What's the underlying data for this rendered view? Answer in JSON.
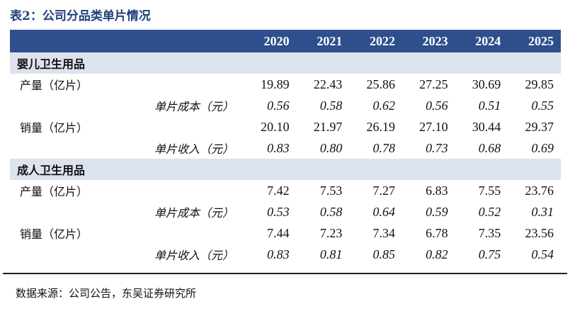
{
  "title": "表2：公司分品类单片情况",
  "years": [
    "2020",
    "2021",
    "2022",
    "2023",
    "2024",
    "2025"
  ],
  "groups": [
    {
      "name": "婴儿卫生用品",
      "rows": [
        {
          "label": "产量（亿片）",
          "values": [
            "19.89",
            "22.43",
            "25.86",
            "27.25",
            "30.69",
            "29.85"
          ]
        },
        {
          "sub_label": "单片成本（元）",
          "values": [
            "0.56",
            "0.58",
            "0.62",
            "0.56",
            "0.51",
            "0.55"
          ]
        },
        {
          "label": "销量（亿片）",
          "values": [
            "20.10",
            "21.97",
            "26.19",
            "27.10",
            "30.44",
            "29.37"
          ]
        },
        {
          "sub_label": "单片收入（元）",
          "values": [
            "0.83",
            "0.80",
            "0.78",
            "0.73",
            "0.68",
            "0.69"
          ]
        }
      ]
    },
    {
      "name": "成人卫生用品",
      "rows": [
        {
          "label": "产量（亿片）",
          "values": [
            "7.42",
            "7.53",
            "7.27",
            "6.83",
            "7.55",
            "23.76"
          ]
        },
        {
          "sub_label": "单片成本（元）",
          "values": [
            "0.53",
            "0.58",
            "0.64",
            "0.59",
            "0.52",
            "0.31"
          ]
        },
        {
          "label": "销量（亿片）",
          "values": [
            "7.44",
            "7.23",
            "7.34",
            "6.78",
            "7.35",
            "23.56"
          ]
        },
        {
          "sub_label": "单片收入（元）",
          "values": [
            "0.83",
            "0.81",
            "0.85",
            "0.82",
            "0.75",
            "0.54"
          ]
        }
      ]
    }
  ],
  "source": "数据来源：公司公告，东吴证券研究所"
}
